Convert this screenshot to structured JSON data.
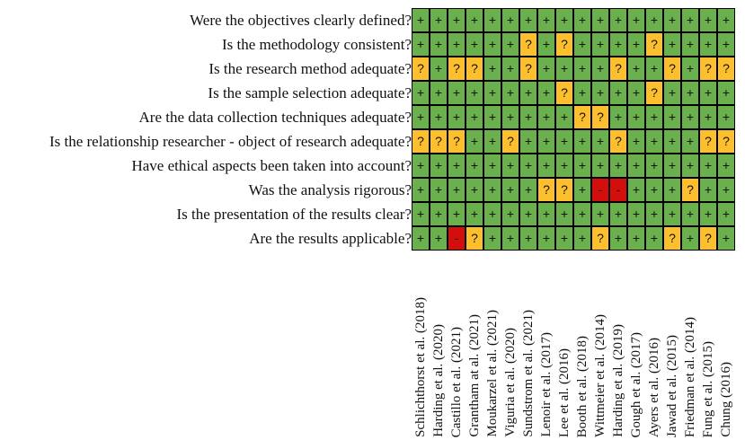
{
  "questions": [
    "Were the objectives clearly defined?",
    "Is the methodology consistent?",
    "Is the research method adequate?",
    "Is the sample selection adequate?",
    "Are the data collection techniques adequate?",
    "Is the relationship researcher - object of research adequate?",
    "Have ethical aspects been taken into account?",
    "Was the analysis rigorous?",
    "Is the presentation of the results clear?",
    "Are the results applicable?"
  ],
  "studies": [
    "Schlichthorst et al. (2018)",
    "Harding et al. (2020)",
    "Castillo et al. (2021)",
    "Grantham at al. (2021)",
    "Moukarzel et al. (2021)",
    "Viguria et al. (2020)",
    "Sundstrom et al. (2021)",
    "Lenoir et al. (2017)",
    "Lee et al. (2016)",
    "Booth et al. (2018)",
    "Wittmeier et al. (2014)",
    "Harding et al. (2019)",
    "Gough et al. (2017)",
    "Ayers et al. (2016)",
    "Jawad et al. (2015)",
    "Friedman et al. (2014)",
    "Fung et al. (2015)",
    "Chung (2016)"
  ],
  "ratings": [
    [
      "+",
      "+",
      "+",
      "+",
      "+",
      "+",
      "+",
      "+",
      "+",
      "+",
      "+",
      "+",
      "+",
      "+",
      "+",
      "+",
      "+",
      "+"
    ],
    [
      "+",
      "+",
      "+",
      "+",
      "+",
      "+",
      "?",
      "+",
      "?",
      "+",
      "+",
      "+",
      "+",
      "?",
      "+",
      "+",
      "+",
      "+"
    ],
    [
      "?",
      "+",
      "?",
      "?",
      "+",
      "+",
      "?",
      "+",
      "+",
      "+",
      "+",
      "?",
      "+",
      "+",
      "?",
      "+",
      "?",
      "?"
    ],
    [
      "+",
      "+",
      "+",
      "+",
      "+",
      "+",
      "+",
      "+",
      "?",
      "+",
      "+",
      "+",
      "+",
      "?",
      "+",
      "+",
      "+",
      "+"
    ],
    [
      "+",
      "+",
      "+",
      "+",
      "+",
      "+",
      "+",
      "+",
      "+",
      "?",
      "?",
      "+",
      "+",
      "+",
      "+",
      "+",
      "+",
      "+"
    ],
    [
      "?",
      "?",
      "?",
      "+",
      "+",
      "?",
      "+",
      "+",
      "+",
      "+",
      "+",
      "?",
      "+",
      "+",
      "+",
      "+",
      "?",
      "?"
    ],
    [
      "+",
      "+",
      "+",
      "+",
      "+",
      "+",
      "+",
      "+",
      "+",
      "+",
      "+",
      "+",
      "+",
      "+",
      "+",
      "+",
      "+",
      "+"
    ],
    [
      "+",
      "+",
      "+",
      "+",
      "+",
      "+",
      "+",
      "?",
      "?",
      "+",
      "-",
      "-",
      "+",
      "+",
      "+",
      "?",
      "+",
      "+"
    ],
    [
      "+",
      "+",
      "+",
      "+",
      "+",
      "+",
      "+",
      "+",
      "+",
      "+",
      "+",
      "+",
      "+",
      "+",
      "+",
      "+",
      "+",
      "+"
    ],
    [
      "+",
      "+",
      "-",
      "?",
      "+",
      "+",
      "+",
      "+",
      "+",
      "+",
      "?",
      "+",
      "+",
      "+",
      "?",
      "+",
      "?",
      "+"
    ]
  ],
  "colors": {
    "positive": "#6ab04c",
    "uncertain": "#fdbf2d",
    "negative": "#d40d0d",
    "border": "#000000"
  }
}
